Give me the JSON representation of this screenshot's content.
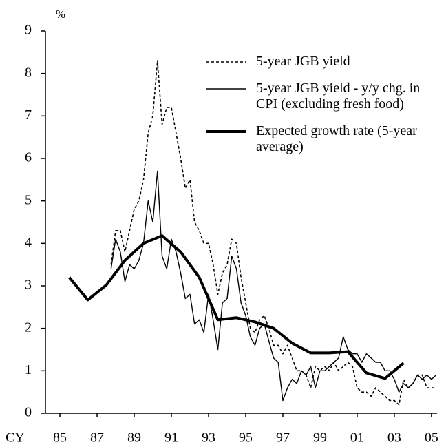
{
  "chart_data": {
    "type": "line",
    "y_unit": "%",
    "x_prefix": "CY",
    "xlim": [
      1984.22,
      2005.3
    ],
    "ylim": [
      0,
      9
    ],
    "yticks": [
      0,
      1,
      2,
      3,
      4,
      5,
      6,
      7,
      8,
      9
    ],
    "xticks": [
      {
        "value": 1985,
        "label": "85"
      },
      {
        "value": 1987,
        "label": "87"
      },
      {
        "value": 1989,
        "label": "89"
      },
      {
        "value": 1991,
        "label": "91"
      },
      {
        "value": 1993,
        "label": "93"
      },
      {
        "value": 1995,
        "label": "95"
      },
      {
        "value": 1997,
        "label": "97"
      },
      {
        "value": 1999,
        "label": "99"
      },
      {
        "value": 2001,
        "label": "01"
      },
      {
        "value": 2003,
        "label": "03"
      },
      {
        "value": 2005,
        "label": "05"
      }
    ],
    "series": [
      {
        "name": "5-year JGB yield",
        "color": "#000000",
        "style": "dotted",
        "x": [
          1987.75,
          1988,
          1988.25,
          1988.5,
          1988.75,
          1989,
          1989.25,
          1989.5,
          1989.75,
          1990,
          1990.25,
          1990.5,
          1990.75,
          1991,
          1991.25,
          1991.5,
          1991.75,
          1992,
          1992.25,
          1992.5,
          1992.75,
          1993,
          1993.25,
          1993.5,
          1993.75,
          1994,
          1994.25,
          1994.5,
          1994.75,
          1995,
          1995.25,
          1995.5,
          1995.75,
          1996,
          1996.25,
          1996.5,
          1996.75,
          1997,
          1997.25,
          1997.5,
          1997.75,
          1998,
          1998.25,
          1998.5,
          1998.75,
          1999,
          1999.25,
          1999.5,
          1999.75,
          2000,
          2000.25,
          2000.5,
          2000.75,
          2001,
          2001.25,
          2001.5,
          2001.75,
          2002,
          2002.25,
          2002.5,
          2002.75,
          2003,
          2003.25,
          2003.5,
          2003.75,
          2004,
          2004.25,
          2004.5,
          2004.75,
          2005,
          2005.25
        ],
        "values": [
          3.5,
          4.3,
          4.3,
          3.8,
          4.3,
          4.8,
          5.0,
          5.5,
          6.6,
          7.0,
          8.3,
          6.8,
          7.2,
          7.2,
          6.6,
          6.0,
          5.3,
          5.5,
          4.5,
          4.3,
          4.0,
          4.0,
          3.5,
          2.8,
          3.3,
          3.5,
          4.1,
          4.0,
          3.2,
          2.6,
          2.0,
          1.9,
          2.2,
          2.3,
          2.0,
          1.6,
          1.6,
          1.4,
          1.6,
          1.3,
          1.0,
          1.0,
          0.9,
          0.6,
          1.1,
          1.0,
          1.1,
          1.0,
          1.2,
          1.0,
          1.1,
          1.2,
          1.1,
          0.6,
          0.5,
          0.5,
          0.4,
          0.6,
          0.5,
          0.4,
          0.3,
          0.3,
          0.2,
          0.8,
          0.6,
          0.7,
          0.9,
          0.9,
          0.6,
          0.6,
          0.6
        ]
      },
      {
        "name": "5-year JGB yield -  y/y chg. in CPI (excluding fresh food)",
        "color": "#000000",
        "style": "thin",
        "x": [
          1987.75,
          1988,
          1988.25,
          1988.5,
          1988.75,
          1989,
          1989.25,
          1989.5,
          1989.75,
          1990,
          1990.25,
          1990.5,
          1990.75,
          1991,
          1991.25,
          1991.5,
          1991.75,
          1992,
          1992.25,
          1992.5,
          1992.75,
          1993,
          1993.25,
          1993.5,
          1993.75,
          1994,
          1994.25,
          1994.5,
          1994.75,
          1995,
          1995.25,
          1995.5,
          1995.75,
          1996,
          1996.25,
          1996.5,
          1996.75,
          1997,
          1997.25,
          1997.5,
          1997.75,
          1998,
          1998.25,
          1998.5,
          1998.75,
          1999,
          1999.25,
          1999.5,
          1999.75,
          2000,
          2000.25,
          2000.5,
          2000.75,
          2001,
          2001.25,
          2001.5,
          2001.75,
          2002,
          2002.25,
          2002.5,
          2002.75,
          2003,
          2003.25,
          2003.5,
          2003.75,
          2004,
          2004.25,
          2004.5,
          2004.75,
          2005,
          2005.25
        ],
        "values": [
          3.4,
          4.1,
          3.8,
          3.1,
          3.5,
          3.4,
          3.6,
          4.0,
          5.0,
          4.5,
          5.7,
          3.7,
          3.4,
          4.1,
          3.8,
          3.3,
          2.7,
          2.8,
          2.1,
          2.2,
          1.9,
          2.8,
          2.2,
          1.5,
          2.6,
          2.7,
          3.7,
          3.4,
          2.6,
          2.3,
          1.8,
          1.6,
          2.0,
          2.1,
          1.7,
          1.3,
          1.2,
          0.3,
          0.6,
          0.8,
          0.7,
          1.0,
          0.9,
          1.1,
          0.6,
          1.0,
          1.0,
          1.1,
          1.2,
          1.3,
          1.8,
          1.5,
          1.4,
          1.4,
          1.2,
          1.4,
          1.3,
          1.2,
          1.2,
          1.0,
          1.0,
          0.8,
          0.5,
          0.7,
          0.6,
          0.7,
          0.9,
          0.8,
          0.9,
          0.8,
          0.9
        ]
      },
      {
        "name": "Expected growth rate (5-year average)",
        "color": "#000000",
        "style": "thick",
        "x": [
          1985.5,
          1986.5,
          1987.5,
          1988.5,
          1989.5,
          1990.5,
          1991.5,
          1992.5,
          1993.5,
          1994.5,
          1995.5,
          1996.5,
          1997.5,
          1998.5,
          1999.5,
          2000.5,
          2001.5,
          2002.5,
          2003.5
        ],
        "values": [
          3.2,
          2.67,
          3.02,
          3.6,
          4.0,
          4.18,
          3.8,
          3.2,
          2.2,
          2.25,
          2.15,
          2.0,
          1.65,
          1.42,
          1.42,
          1.45,
          0.95,
          0.82,
          1.18
        ]
      }
    ]
  }
}
